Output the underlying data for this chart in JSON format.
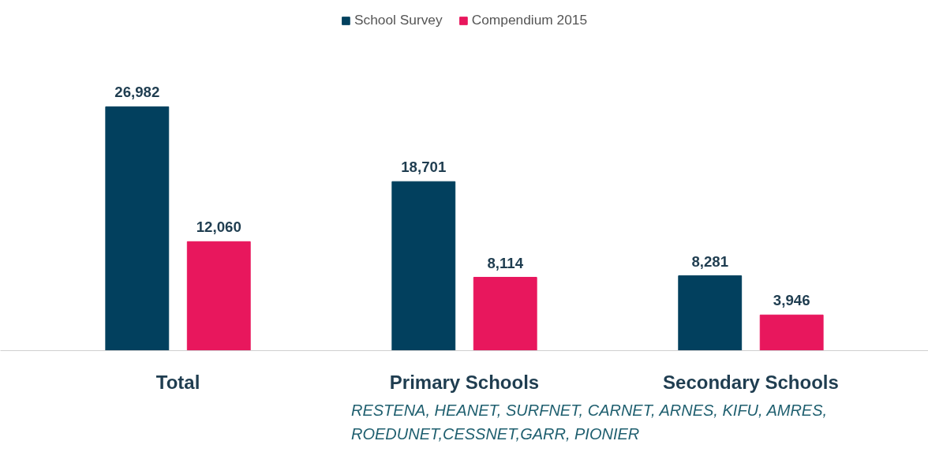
{
  "chart_data": {
    "type": "bar",
    "categories": [
      "Total",
      "Primary Schools",
      "Secondary Schools"
    ],
    "series": [
      {
        "name": "School Survey",
        "color": "#02405e",
        "values": [
          26982,
          18701,
          8281
        ],
        "value_labels": [
          "26,982",
          "18,701",
          "8,281"
        ]
      },
      {
        "name": "Compendium 2015",
        "color": "#e8175d",
        "values": [
          12060,
          8114,
          3946
        ],
        "value_labels": [
          "12,060",
          "8,114",
          "3,946"
        ]
      }
    ],
    "legend": "top",
    "grid": false,
    "annotations": [
      "RESTENA, HEANET, SURFNET, CARNET, ARNES, KIFU, AMRES, ROEDUNET,CESSNET,GARR, PIONIER"
    ]
  }
}
